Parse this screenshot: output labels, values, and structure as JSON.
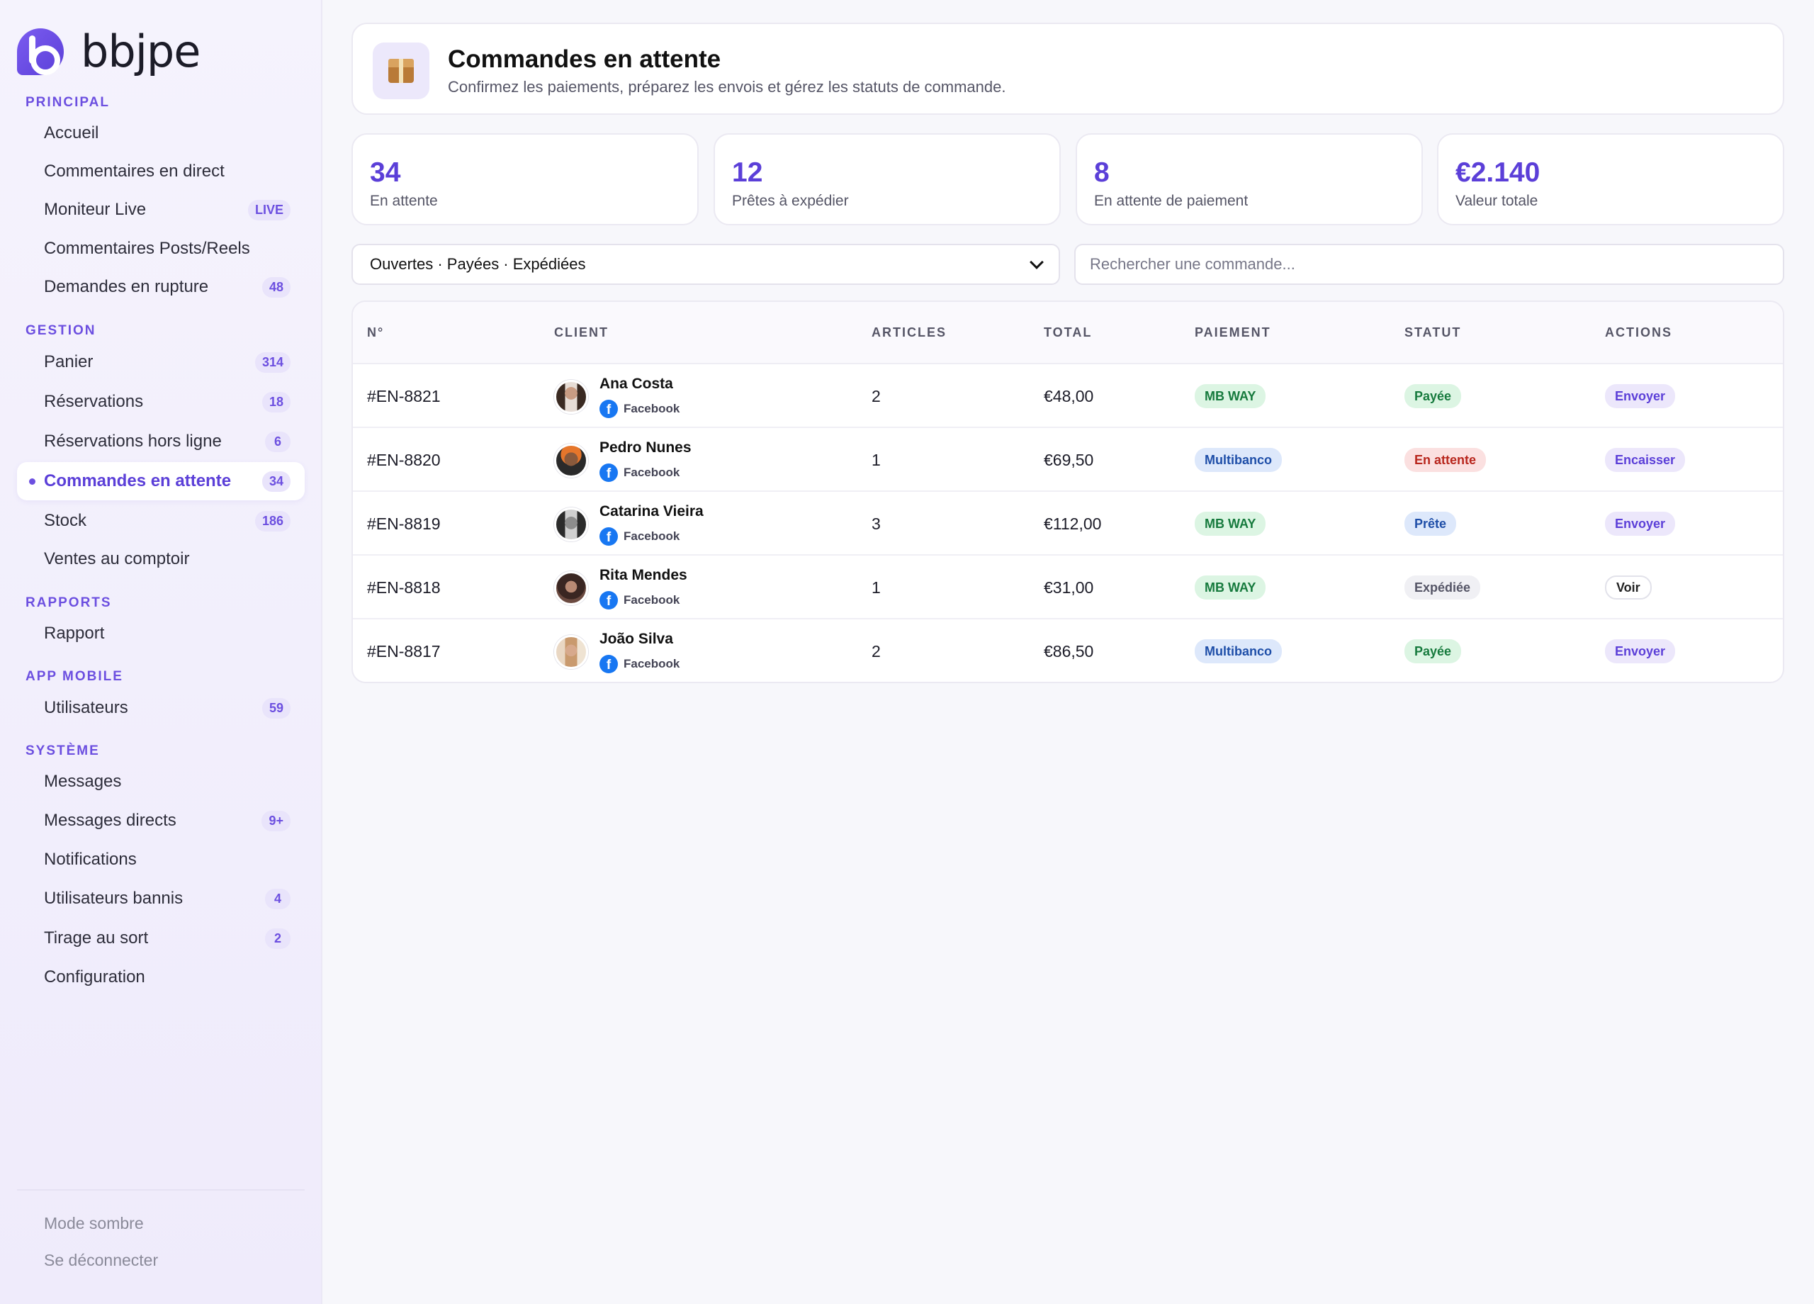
{
  "brand": {
    "name": "bbjpe"
  },
  "sidebar": {
    "sections": [
      {
        "title": "PRINCIPAL"
      },
      {
        "title": "GESTION"
      },
      {
        "title": "RAPPORTS"
      },
      {
        "title": "APP MOBILE"
      },
      {
        "title": "SYSTÈME"
      }
    ],
    "items": [
      {
        "label": "Accueil",
        "badge": ""
      },
      {
        "label": "Commentaires en direct",
        "badge": ""
      },
      {
        "label": "Moniteur Live",
        "badge": "LIVE"
      },
      {
        "label": "Commentaires Posts/Reels",
        "badge": ""
      },
      {
        "label": "Demandes en rupture",
        "badge": "48"
      },
      {
        "label": "Panier",
        "badge": "314"
      },
      {
        "label": "Réservations",
        "badge": "18"
      },
      {
        "label": "Réservations hors ligne",
        "badge": "6"
      },
      {
        "label": "Commandes en attente",
        "badge": "34"
      },
      {
        "label": "Stock",
        "badge": "186"
      },
      {
        "label": "Ventes au comptoir",
        "badge": ""
      },
      {
        "label": "Rapport",
        "badge": ""
      },
      {
        "label": "Utilisateurs",
        "badge": "59"
      },
      {
        "label": "Messages",
        "badge": ""
      },
      {
        "label": "Messages directs",
        "badge": "9+"
      },
      {
        "label": "Notifications",
        "badge": ""
      },
      {
        "label": "Utilisateurs bannis",
        "badge": "4"
      },
      {
        "label": "Tirage au sort",
        "badge": "2"
      },
      {
        "label": "Configuration",
        "badge": ""
      }
    ],
    "footer": {
      "dark_mode": "Mode sombre",
      "logout": "Se déconnecter"
    }
  },
  "header": {
    "title": "Commandes en attente",
    "subtitle": "Confirmez les paiements, préparez les envois et gérez les statuts de commande."
  },
  "stats": [
    {
      "value": "34",
      "label": "En attente"
    },
    {
      "value": "12",
      "label": "Prêtes à expédier"
    },
    {
      "value": "8",
      "label": "En attente de paiement"
    },
    {
      "value": "€2.140",
      "label": "Valeur totale"
    }
  ],
  "filter": {
    "selected": "Ouvertes · Payées · Expédiées"
  },
  "search": {
    "placeholder": "Rechercher une commande..."
  },
  "table": {
    "columns": [
      "N°",
      "CLIENT",
      "ARTICLES",
      "TOTAL",
      "PAIEMENT",
      "STATUT",
      "ACTIONS"
    ],
    "rows": [
      {
        "id": "#EN-8821",
        "name": "Ana Costa",
        "source": "Facebook",
        "articles": "2",
        "total": "€48,00",
        "payment": "MB WAY",
        "status": "Payée",
        "action": "Envoyer"
      },
      {
        "id": "#EN-8820",
        "name": "Pedro Nunes",
        "source": "Facebook",
        "articles": "1",
        "total": "€69,50",
        "payment": "Multibanco",
        "status": "En attente",
        "action": "Encaisser"
      },
      {
        "id": "#EN-8819",
        "name": "Catarina Vieira",
        "source": "Facebook",
        "articles": "3",
        "total": "€112,00",
        "payment": "MB WAY",
        "status": "Prête",
        "action": "Envoyer"
      },
      {
        "id": "#EN-8818",
        "name": "Rita Mendes",
        "source": "Facebook",
        "articles": "1",
        "total": "€31,00",
        "payment": "MB WAY",
        "status": "Expédiée",
        "action": "Voir"
      },
      {
        "id": "#EN-8817",
        "name": "João Silva",
        "source": "Facebook",
        "articles": "2",
        "total": "€86,50",
        "payment": "Multibanco",
        "status": "Payée",
        "action": "Envoyer"
      }
    ]
  },
  "colors": {
    "accent": "#5b3fd8",
    "paid": "#167a3d",
    "pending": "#b8261d",
    "ready": "#1e4ea8"
  }
}
